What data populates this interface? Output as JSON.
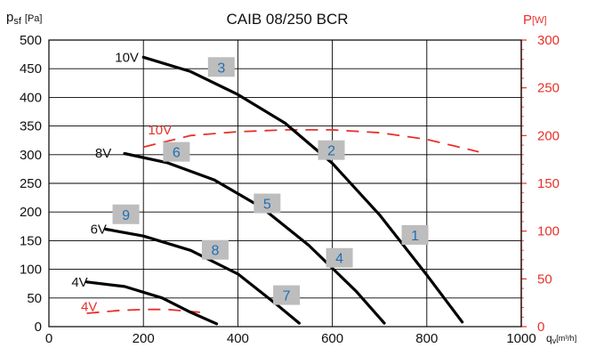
{
  "chart_data": {
    "type": "line",
    "title": "CAIB 08/250 BCR",
    "xlabel": "q",
    "xlabel_sub": "v",
    "xunit": "[m³/h]",
    "ylabel": "p",
    "ylabel_sub": "sf",
    "yunit": "[Pa]",
    "y2label": "P",
    "y2unit": "[W]",
    "xlim": [
      0,
      1000
    ],
    "ylim": [
      0,
      500
    ],
    "y2lim": [
      0,
      300
    ],
    "xticks": [
      0,
      200,
      400,
      600,
      800,
      1000
    ],
    "yticks": [
      0,
      50,
      100,
      150,
      200,
      250,
      300,
      350,
      400,
      450,
      500
    ],
    "y2ticks": [
      0,
      50,
      100,
      150,
      200,
      250,
      300
    ],
    "grid": true,
    "colors": {
      "pressure": "#000000",
      "power": "#e8302a",
      "marker_bg": "#bdbdbd",
      "marker_text": "#1f6fb5"
    },
    "pressure_curves": [
      {
        "name": "10V",
        "label_at": [
          165,
          470
        ],
        "points": [
          [
            200,
            470
          ],
          [
            300,
            445
          ],
          [
            400,
            405
          ],
          [
            500,
            355
          ],
          [
            600,
            285
          ],
          [
            700,
            195
          ],
          [
            800,
            90
          ],
          [
            875,
            8
          ]
        ]
      },
      {
        "name": "8V",
        "label_at": [
          115,
          303
        ],
        "points": [
          [
            160,
            302
          ],
          [
            250,
            286
          ],
          [
            350,
            256
          ],
          [
            450,
            208
          ],
          [
            550,
            142
          ],
          [
            650,
            62
          ],
          [
            710,
            6
          ]
        ]
      },
      {
        "name": "6V",
        "label_at": [
          105,
          170
        ],
        "points": [
          [
            120,
            170
          ],
          [
            200,
            158
          ],
          [
            300,
            133
          ],
          [
            400,
            92
          ],
          [
            480,
            40
          ],
          [
            530,
            6
          ]
        ]
      },
      {
        "name": "4V",
        "label_at": [
          65,
          78
        ],
        "points": [
          [
            80,
            78
          ],
          [
            160,
            70
          ],
          [
            240,
            50
          ],
          [
            300,
            25
          ],
          [
            355,
            5
          ]
        ]
      }
    ],
    "power_curves": [
      {
        "name": "10V",
        "label_at": [
          235,
          206
        ],
        "points": [
          [
            200,
            188
          ],
          [
            300,
            200
          ],
          [
            400,
            204
          ],
          [
            500,
            206
          ],
          [
            600,
            206
          ],
          [
            700,
            203
          ],
          [
            800,
            196
          ],
          [
            910,
            183
          ]
        ]
      },
      {
        "name": "4V",
        "label_at": [
          85,
          21
        ],
        "points": [
          [
            80,
            14
          ],
          [
            150,
            17
          ],
          [
            200,
            18
          ],
          [
            250,
            18
          ],
          [
            320,
            15
          ]
        ]
      }
    ],
    "markers": [
      {
        "label": "1",
        "x": 775,
        "y": 160
      },
      {
        "label": "2",
        "x": 598,
        "y": 308
      },
      {
        "label": "3",
        "x": 365,
        "y": 453
      },
      {
        "label": "4",
        "x": 615,
        "y": 120
      },
      {
        "label": "5",
        "x": 462,
        "y": 215
      },
      {
        "label": "6",
        "x": 270,
        "y": 305
      },
      {
        "label": "7",
        "x": 503,
        "y": 55
      },
      {
        "label": "8",
        "x": 352,
        "y": 134
      },
      {
        "label": "9",
        "x": 163,
        "y": 196
      }
    ]
  }
}
